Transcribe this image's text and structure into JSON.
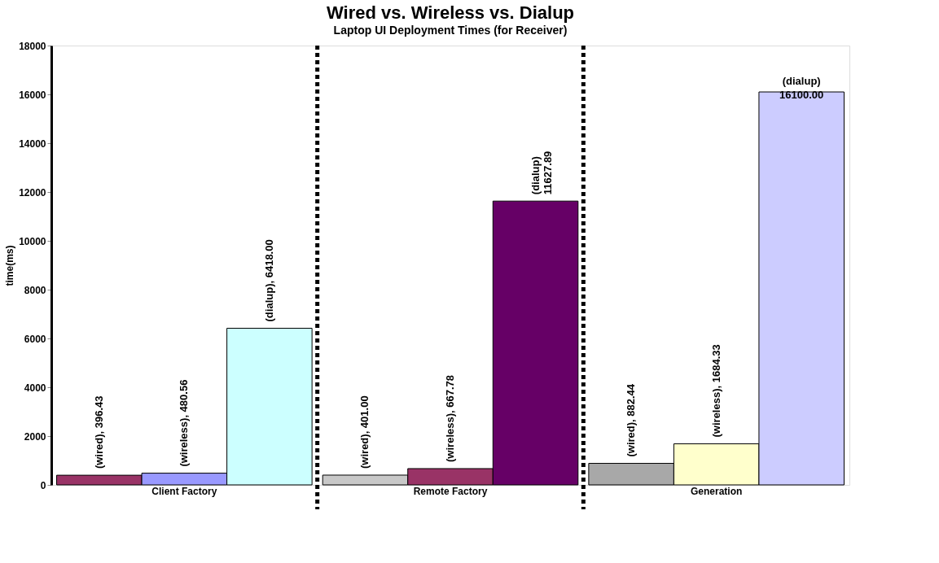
{
  "chart_data": {
    "type": "bar",
    "title": "Wired vs. Wireless vs. Dialup",
    "subtitle": "Laptop UI Deployment Times (for Receiver)",
    "ylabel": "time(ms)",
    "categories": [
      "Client Factory",
      "Remote Factory",
      "Generation"
    ],
    "series": [
      {
        "colors": [
          "#993366",
          "#c8c8c8",
          "#a8a8a8"
        ],
        "values": [
          396.43,
          401.0,
          882.44
        ],
        "value_labels": [
          "(wired), 396.43",
          "(wired), 401.00",
          "(wired), 882.44"
        ]
      },
      {
        "colors": [
          "#9999ff",
          "#993366",
          "#ffffcc"
        ],
        "values": [
          480.56,
          667.78,
          1684.33
        ],
        "value_labels": [
          "(wireless), 480.56",
          "(wireless), 667.78",
          "(wireless), 1684.33"
        ]
      },
      {
        "colors": [
          "#ccffff",
          "#660066",
          "#ccccff"
        ],
        "values": [
          6418.0,
          11627.89,
          16100.0
        ],
        "value_labels": [
          "(dialup), 6418.00",
          "(dialup)\n11627.89",
          "(dialup)\n16100.00"
        ]
      }
    ],
    "ylim": [
      0,
      18000
    ],
    "yticks": [
      0,
      2000,
      4000,
      6000,
      8000,
      10000,
      12000,
      14000,
      16000,
      18000
    ],
    "grid": false
  }
}
